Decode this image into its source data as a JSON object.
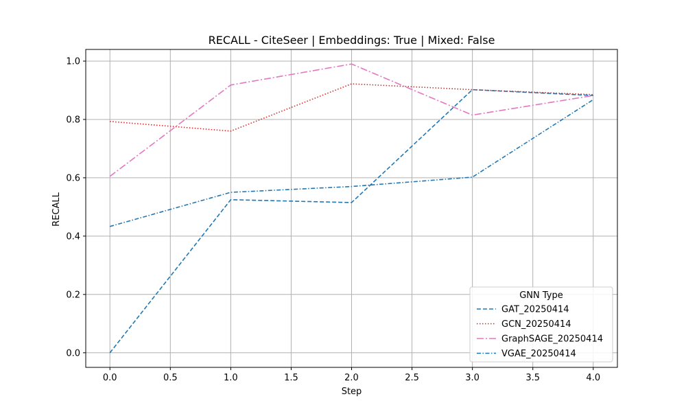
{
  "chart_data": {
    "type": "line",
    "title": "RECALL - CiteSeer | Embeddings: True | Mixed: False",
    "xlabel": "Step",
    "ylabel": "RECALL",
    "xlim": [
      -0.2,
      4.2
    ],
    "ylim": [
      -0.05,
      1.04
    ],
    "xticks": [
      0.0,
      0.5,
      1.0,
      1.5,
      2.0,
      2.5,
      3.0,
      3.5,
      4.0
    ],
    "xtick_labels": [
      "0.0",
      "0.5",
      "1.0",
      "1.5",
      "2.0",
      "2.5",
      "3.0",
      "3.5",
      "4.0"
    ],
    "yticks": [
      0.0,
      0.2,
      0.4,
      0.6,
      0.8,
      1.0
    ],
    "ytick_labels": [
      "0.0",
      "0.2",
      "0.4",
      "0.6",
      "0.8",
      "1.0"
    ],
    "grid": true,
    "legend": {
      "title": "GNN Type",
      "placement": "lower-right"
    },
    "x": [
      0,
      1,
      2,
      3,
      4
    ],
    "series": [
      {
        "name": "GAT_20250414",
        "values": [
          0.0,
          0.525,
          0.515,
          0.902,
          0.882
        ],
        "color": "#1f77b4",
        "dash": "dashed"
      },
      {
        "name": "GCN_20250414",
        "values": [
          0.793,
          0.76,
          0.922,
          0.902,
          0.885
        ],
        "color": "#d62728",
        "dash": "dotted"
      },
      {
        "name": "GraphSAGE_20250414",
        "values": [
          0.605,
          0.918,
          0.99,
          0.815,
          0.882
        ],
        "color": "#e377c2",
        "dash": "dashdot"
      },
      {
        "name": "VGAE_20250414",
        "values": [
          0.433,
          0.55,
          0.57,
          0.602,
          0.868
        ],
        "color": "#1f77b4",
        "dash": "loosedashdot"
      }
    ]
  }
}
